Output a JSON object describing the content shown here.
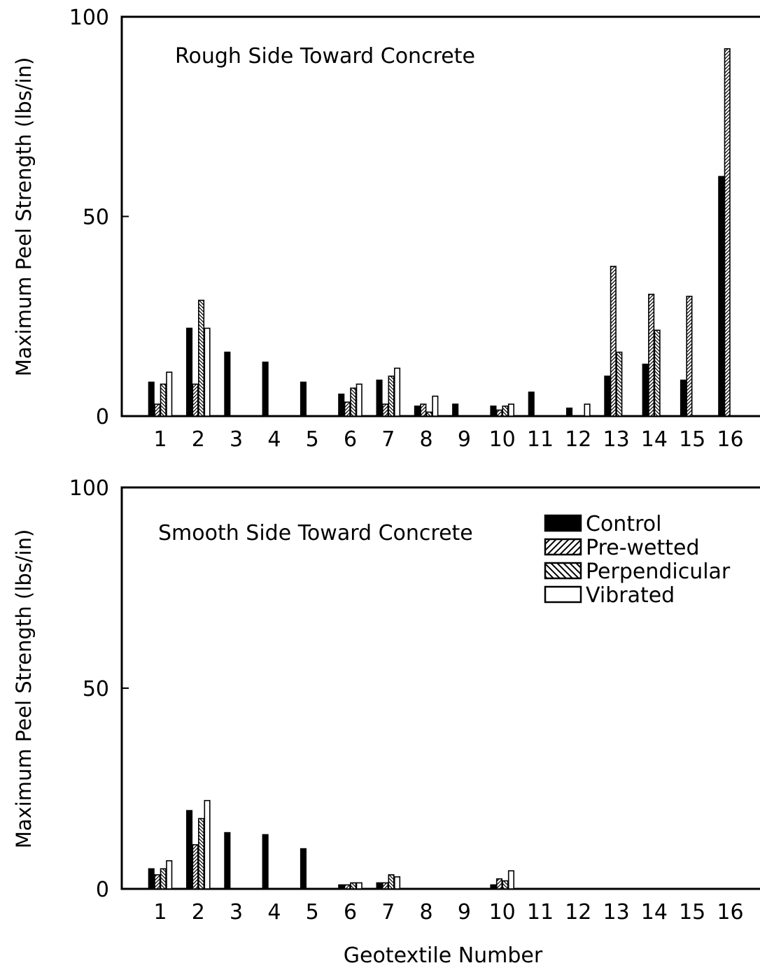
{
  "figure": {
    "xlabel": "Geotextile Number"
  },
  "chart_data": [
    {
      "type": "bar",
      "title": "Rough Side Toward Concrete",
      "ylabel": "Maximum Peel Strength (lbs/in)",
      "ylim": [
        0,
        100
      ],
      "yticks": [
        0,
        50,
        100
      ],
      "grid": false,
      "categories": [
        "1",
        "2",
        "3",
        "4",
        "5",
        "6",
        "7",
        "8",
        "9",
        "10",
        "11",
        "12",
        "13",
        "14",
        "15",
        "16"
      ],
      "series": [
        {
          "name": "Control",
          "values": [
            8.5,
            22,
            16,
            13.5,
            8.5,
            5.5,
            9,
            2.5,
            3,
            2.5,
            6,
            2,
            10,
            13,
            9,
            60
          ]
        },
        {
          "name": "Pre-wetted",
          "values": [
            3,
            8,
            0,
            0,
            0,
            3.5,
            3,
            3,
            0,
            1.5,
            0,
            0,
            37.5,
            30.5,
            30,
            92
          ]
        },
        {
          "name": "Perpendicular",
          "values": [
            8,
            29,
            0,
            0,
            0,
            7,
            10,
            1,
            0,
            2.5,
            0,
            0,
            16,
            21.5,
            0,
            0
          ]
        },
        {
          "name": "Vibrated",
          "values": [
            11,
            22,
            0,
            0,
            0,
            8,
            12,
            5,
            0,
            3,
            0,
            3,
            0,
            0,
            0,
            0
          ]
        }
      ]
    },
    {
      "type": "bar",
      "title": "Smooth Side Toward Concrete",
      "ylabel": "Maximum Peel Strength (lbs/in)",
      "ylim": [
        0,
        100
      ],
      "yticks": [
        0,
        50,
        100
      ],
      "grid": false,
      "legend_position": "top-right",
      "categories": [
        "1",
        "2",
        "3",
        "4",
        "5",
        "6",
        "7",
        "8",
        "9",
        "10",
        "11",
        "12",
        "13",
        "14",
        "15",
        "16"
      ],
      "series": [
        {
          "name": "Control",
          "values": [
            5,
            19.5,
            14,
            13.5,
            10,
            1,
            1.5,
            0,
            0,
            1,
            0,
            0,
            0,
            0,
            0,
            0
          ]
        },
        {
          "name": "Pre-wetted",
          "values": [
            3.5,
            11,
            0,
            0,
            0,
            1,
            1.5,
            0,
            0,
            2.5,
            0,
            0,
            0,
            0,
            0,
            0
          ]
        },
        {
          "name": "Perpendicular",
          "values": [
            5,
            17.5,
            0,
            0,
            0,
            1.5,
            3.5,
            0,
            0,
            2,
            0,
            0,
            0,
            0,
            0,
            0
          ]
        },
        {
          "name": "Vibrated",
          "values": [
            7,
            22,
            0,
            0,
            0,
            1.5,
            3,
            0,
            0,
            4.5,
            0,
            0,
            0,
            0,
            0,
            0
          ]
        }
      ]
    }
  ],
  "legend": {
    "items": [
      {
        "label": "Control",
        "pattern": "solid"
      },
      {
        "label": "Pre-wetted",
        "pattern": "forward-hatch"
      },
      {
        "label": "Perpendicular",
        "pattern": "back-hatch"
      },
      {
        "label": "Vibrated",
        "pattern": "empty"
      }
    ]
  }
}
